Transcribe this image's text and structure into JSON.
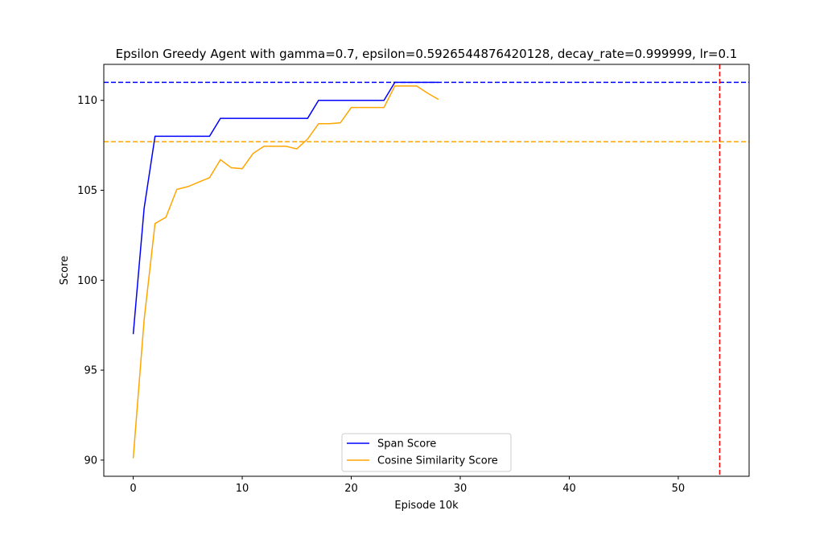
{
  "chart_data": {
    "type": "line",
    "title": "Epsilon Greedy Agent with gamma=0.7, epsilon=0.5926544876420128, decay_rate=0.999999, lr=0.1",
    "xlabel": "Episode 10k",
    "ylabel": "Score",
    "xlim": [
      -2.7,
      56.5
    ],
    "ylim": [
      89.1,
      112.0
    ],
    "xticks": [
      0,
      10,
      20,
      30,
      40,
      50
    ],
    "yticks": [
      90,
      95,
      100,
      105,
      110
    ],
    "grid": false,
    "legend_position": "bottom-center",
    "x": [
      0,
      1,
      2,
      3,
      4,
      5,
      6,
      7,
      8,
      9,
      10,
      11,
      12,
      13,
      14,
      15,
      16,
      17,
      18,
      19,
      20,
      21,
      22,
      23,
      24,
      25,
      26,
      27,
      28
    ],
    "series": [
      {
        "name": "Span Score",
        "color": "#0000ff",
        "values": [
          97.0,
          104.0,
          108.0,
          108.0,
          108.0,
          108.0,
          108.0,
          108.0,
          109.0,
          109.0,
          109.0,
          109.0,
          109.0,
          109.0,
          109.0,
          109.0,
          109.0,
          110.0,
          110.0,
          110.0,
          110.0,
          110.0,
          110.0,
          110.0,
          111.0,
          111.0,
          111.0,
          111.0,
          111.0
        ]
      },
      {
        "name": "Cosine Similarity Score",
        "color": "#ffa500",
        "values": [
          90.1,
          97.8,
          103.15,
          103.5,
          105.05,
          105.2,
          105.45,
          105.7,
          106.7,
          106.25,
          106.2,
          107.05,
          107.45,
          107.45,
          107.45,
          107.3,
          107.85,
          108.7,
          108.7,
          108.75,
          109.6,
          109.6,
          109.6,
          109.6,
          110.8,
          110.8,
          110.8,
          110.4,
          110.05
        ]
      }
    ],
    "reference_lines": [
      {
        "orientation": "horizontal",
        "value": 111.0,
        "color": "#0000ff",
        "style": "dashed"
      },
      {
        "orientation": "horizontal",
        "value": 107.7,
        "color": "#ffa500",
        "style": "dashed"
      },
      {
        "orientation": "vertical",
        "value": 53.8,
        "color": "#ff0000",
        "style": "dashed"
      }
    ]
  }
}
